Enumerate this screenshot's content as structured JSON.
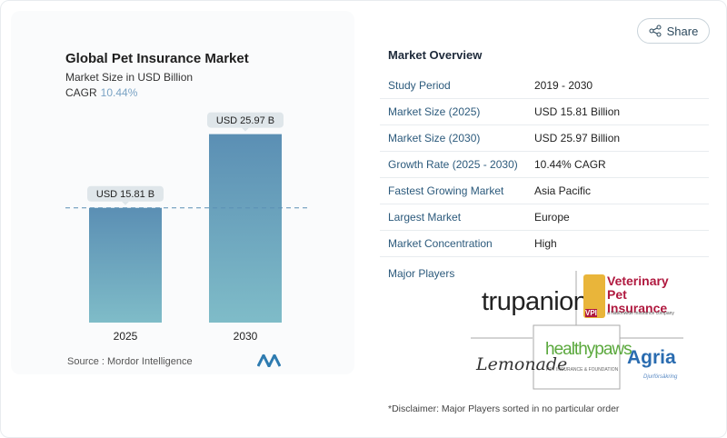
{
  "chart_data": {
    "type": "bar",
    "title": "Global Pet Insurance Market",
    "subtitle": "Market Size in USD Billion",
    "cagr_label": "CAGR",
    "cagr_value": "10.44%",
    "categories": [
      "2025",
      "2030"
    ],
    "values": [
      15.81,
      25.97
    ],
    "data_labels": [
      "USD 15.81 B",
      "USD 25.97 B"
    ],
    "ylim": [
      0,
      28.8
    ],
    "bar_color": "#5b8fb4",
    "bar_color_bottom": "#7fbcc8",
    "reference_line": 15.81
  },
  "source": "Source :  Mordor Intelligence",
  "share_label": "Share",
  "overview": {
    "title": "Market Overview",
    "rows": [
      {
        "k": "Study Period",
        "v": "2019 - 2030"
      },
      {
        "k": "Market Size (2025)",
        "v": "USD 15.81 Billion"
      },
      {
        "k": "Market Size (2030)",
        "v": "USD 25.97 Billion"
      },
      {
        "k": "Growth Rate (2025 - 2030)",
        "v": "10.44% CAGR"
      },
      {
        "k": "Fastest Growing Market",
        "v": "Asia Pacific"
      },
      {
        "k": "Largest Market",
        "v": "Europe"
      },
      {
        "k": "Market Concentration",
        "v": "High"
      }
    ]
  },
  "major_players_label": "Major Players",
  "players": [
    "trupanion",
    "Veterinary Pet Insurance",
    "Lemonade",
    "healthypaws",
    "Agria"
  ],
  "player_sublabels": [
    "a Nationwide Insurance company",
    "PET INSURANCE & FOUNDATION",
    "Djurförsäkring",
    "VPI"
  ],
  "disclaimer": "*Disclaimer: Major Players sorted in no particular order"
}
